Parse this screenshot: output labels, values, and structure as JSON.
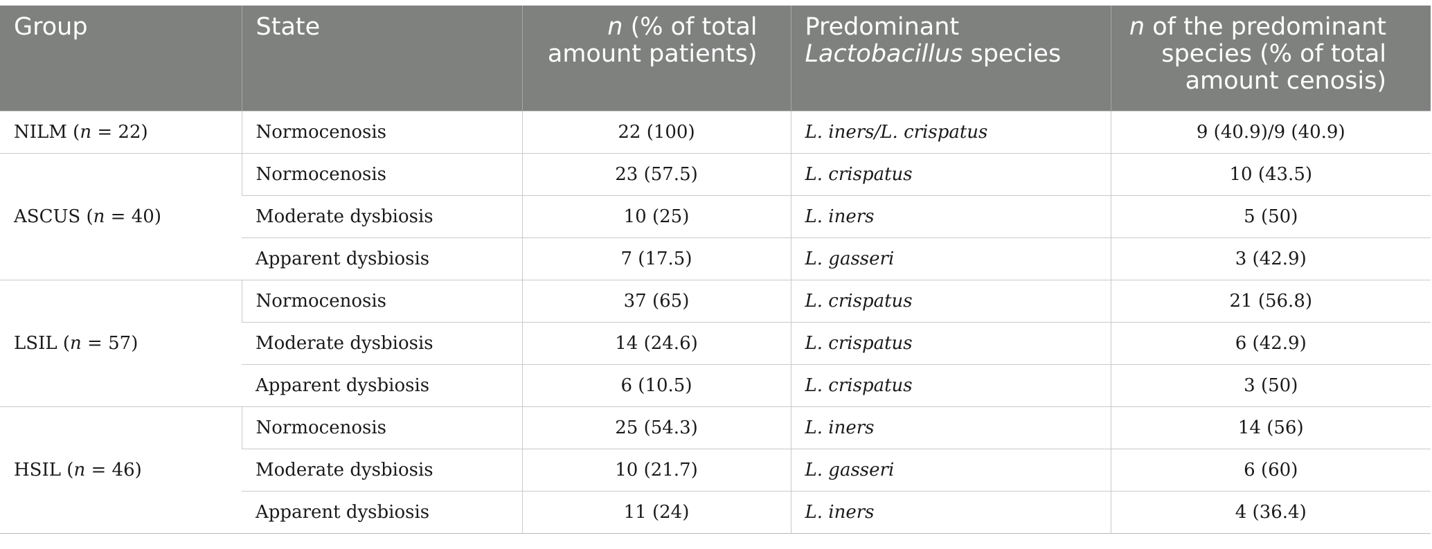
{
  "header": {
    "group": "Group",
    "state": "State",
    "n_pct_italic": "n",
    "n_pct_rest": " (% of total amount patients)",
    "species_line1": "Predominant",
    "species_italic": "Lactobacillus",
    "species_rest": " species",
    "npred_italic": "n",
    "npred_rest": " of the predominant species (% of total amount cenosis)"
  },
  "groups": [
    {
      "name": "NILM",
      "n": "22",
      "rows": [
        {
          "state": "Normocenosis",
          "count": "22 (100)",
          "species": "L. iners/L. crispatus",
          "pred": "9 (40.9)/9 (40.9)"
        }
      ]
    },
    {
      "name": "ASCUS",
      "n": "40",
      "rows": [
        {
          "state": "Normocenosis",
          "count": "23 (57.5)",
          "species": "L. crispatus",
          "pred": "10 (43.5)"
        },
        {
          "state": "Moderate dysbiosis",
          "count": "10 (25)",
          "species": "L. iners",
          "pred": "5 (50)"
        },
        {
          "state": "Apparent dysbiosis",
          "count": "7 (17.5)",
          "species": "L. gasseri",
          "pred": "3 (42.9)"
        }
      ]
    },
    {
      "name": "LSIL",
      "n": "57",
      "rows": [
        {
          "state": "Normocenosis",
          "count": "37 (65)",
          "species": "L. crispatus",
          "pred": "21 (56.8)"
        },
        {
          "state": "Moderate dysbiosis",
          "count": "14 (24.6)",
          "species": "L. crispatus",
          "pred": "6 (42.9)"
        },
        {
          "state": "Apparent dysbiosis",
          "count": "6 (10.5)",
          "species": "L. crispatus",
          "pred": "3 (50)"
        }
      ]
    },
    {
      "name": "HSIL",
      "n": "46",
      "rows": [
        {
          "state": "Normocenosis",
          "count": "25 (54.3)",
          "species": "L. iners",
          "pred": "14 (56)"
        },
        {
          "state": "Moderate dysbiosis",
          "count": "10 (21.7)",
          "species": "L. gasseri",
          "pred": "6 (60)"
        },
        {
          "state": "Apparent dysbiosis",
          "count": "11 (24)",
          "species": "L. iners",
          "pred": "4 (36.4)"
        }
      ]
    }
  ]
}
